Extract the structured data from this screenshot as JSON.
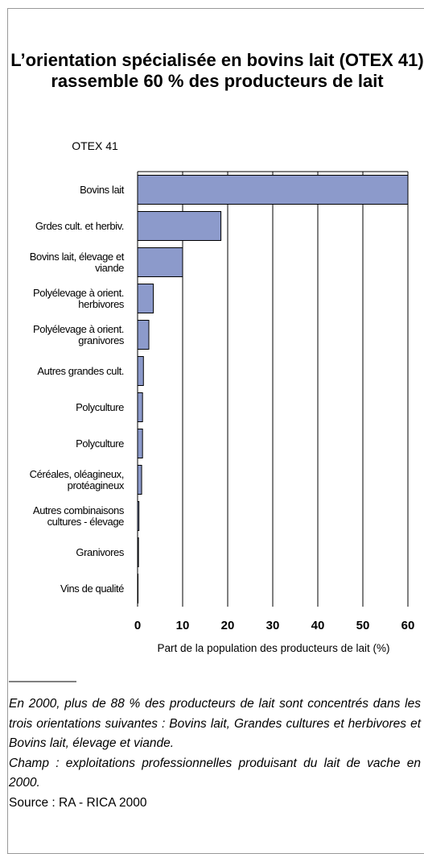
{
  "chart_data": {
    "type": "bar",
    "orientation": "horizontal",
    "title": "L’orientation spécialisée en bovins lait (OTEX 41) rassemble 60 % des producteurs de lait",
    "y_label": "OTEX 41",
    "x_label": "Part de la population des producteurs de lait (%)",
    "categories": [
      "Bovins lait",
      "Grdes cult. et herbiv.",
      "Bovins lait, élevage et viande",
      "Polyélevage à orient. herbivores",
      "Polyélevage à orient. granivores",
      "Autres grandes cult.",
      "Polyculture",
      "Polyculture",
      "Céréales, oléagineux, protéagineux",
      "Autres combinaisons cultures - élevage",
      "Granivores",
      "Vins de qualité"
    ],
    "values": [
      60,
      18.5,
      10,
      3.5,
      2.5,
      1.3,
      1.1,
      1.1,
      0.9,
      0.3,
      0.2,
      0.1
    ],
    "color": "#8c9acb",
    "xlim": [
      0,
      60
    ],
    "xticks": [
      0,
      10,
      20,
      30,
      40,
      50,
      60
    ],
    "grid": true,
    "notes": [
      "En 2000, plus de 88 % des producteurs de lait sont concentrés dans les trois orientations suivantes : Bovins lait, Grandes cultures et herbivores et Bovins lait, élevage et viande.",
      "Champ : exploitations professionnelles produisant du lait de vache en 2000."
    ],
    "source": "Source : RA - RICA 2000"
  }
}
